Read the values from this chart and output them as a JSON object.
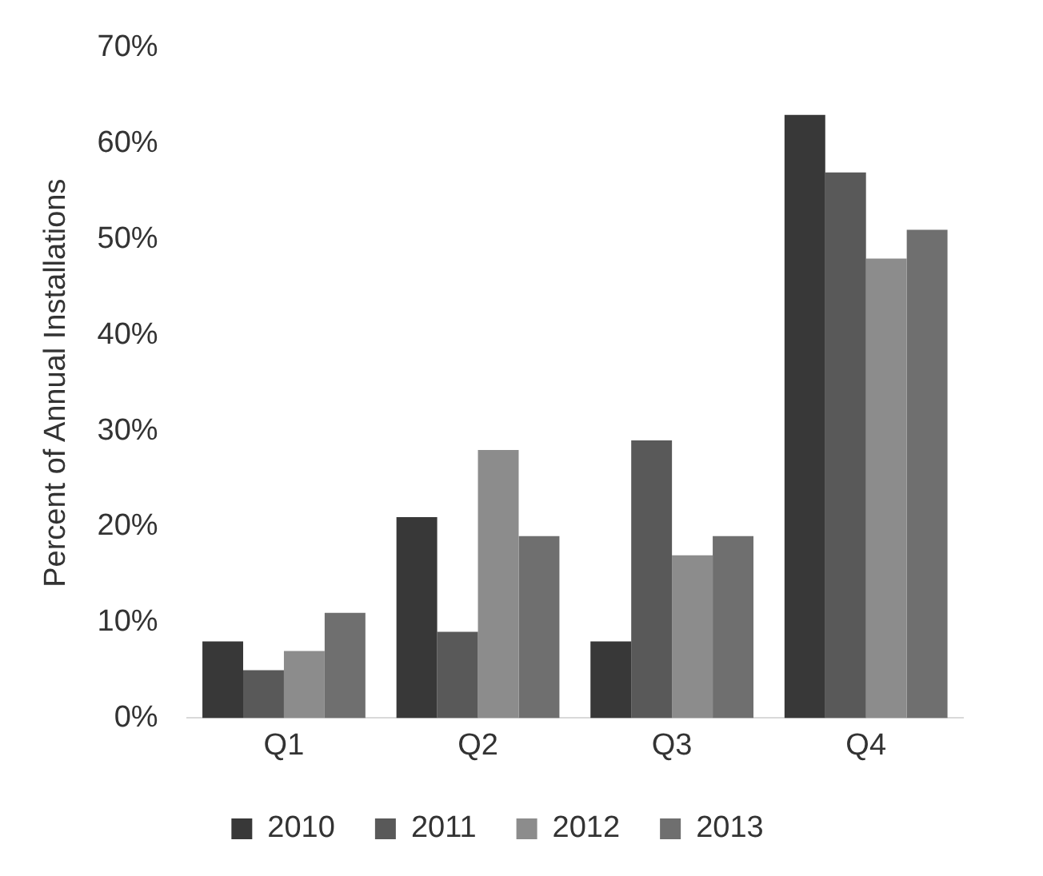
{
  "chart_data": {
    "type": "bar",
    "ylabel": "Percent of Annual Installations",
    "categories": [
      "Q1",
      "Q2",
      "Q3",
      "Q4"
    ],
    "series": [
      {
        "name": "2010",
        "color": "#383838",
        "values": [
          8,
          21,
          8,
          63
        ]
      },
      {
        "name": "2011",
        "color": "#595959",
        "values": [
          5,
          9,
          29,
          57
        ]
      },
      {
        "name": "2012",
        "color": "#8c8c8c",
        "values": [
          7,
          28,
          17,
          48
        ]
      },
      {
        "name": "2013",
        "color": "#6f6f6f",
        "values": [
          11,
          19,
          19,
          51
        ]
      }
    ],
    "ylim": [
      0,
      70
    ],
    "yticks": [
      {
        "value": 0,
        "label": "0%"
      },
      {
        "value": 10,
        "label": "10%"
      },
      {
        "value": 20,
        "label": "20%"
      },
      {
        "value": 30,
        "label": "30%"
      },
      {
        "value": 40,
        "label": "40%"
      },
      {
        "value": 50,
        "label": "50%"
      },
      {
        "value": 60,
        "label": "60%"
      },
      {
        "value": 70,
        "label": "70%"
      }
    ],
    "grid": false,
    "legend": "bottom"
  }
}
